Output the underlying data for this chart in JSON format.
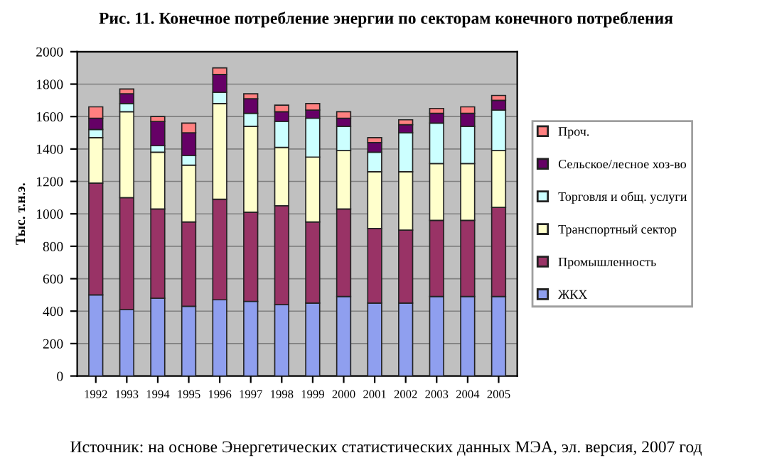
{
  "chart_data": {
    "type": "bar",
    "stacked": true,
    "title": "Рис. 11. Конечное потребление энергии по секторам конечного потребления",
    "ylabel": "Тыс. т.н.э.",
    "categories": [
      "1992",
      "1993",
      "1994",
      "1995",
      "1996",
      "1997",
      "1998",
      "1999",
      "2000",
      "2001",
      "2002",
      "2003",
      "2004",
      "2005"
    ],
    "series": [
      {
        "name": "ЖКХ",
        "color": "#8f9fef",
        "values": [
          500,
          410,
          480,
          430,
          470,
          460,
          440,
          450,
          490,
          450,
          450,
          490,
          490,
          490
        ]
      },
      {
        "name": "Промышленность",
        "color": "#993366",
        "values": [
          690,
          690,
          550,
          520,
          620,
          550,
          610,
          500,
          540,
          460,
          450,
          470,
          470,
          550
        ]
      },
      {
        "name": "Транспортный сектор",
        "color": "#ffffcc",
        "values": [
          280,
          530,
          350,
          350,
          590,
          530,
          360,
          400,
          360,
          350,
          360,
          350,
          350,
          350
        ]
      },
      {
        "name": "Торговля и общ. услуги",
        "color": "#ccffff",
        "values": [
          50,
          50,
          40,
          60,
          70,
          80,
          160,
          240,
          150,
          120,
          240,
          250,
          230,
          250
        ]
      },
      {
        "name": "Сельское/лесное хоз-во",
        "color": "#660066",
        "values": [
          70,
          60,
          150,
          140,
          110,
          90,
          60,
          50,
          50,
          60,
          50,
          60,
          80,
          60
        ]
      },
      {
        "name": "Проч.",
        "color": "#ff8080",
        "values": [
          70,
          30,
          30,
          60,
          40,
          30,
          40,
          40,
          40,
          30,
          30,
          30,
          40,
          30
        ]
      }
    ],
    "ylim": [
      0,
      2000
    ],
    "yticks": [
      0,
      200,
      400,
      600,
      800,
      1000,
      1200,
      1400,
      1600,
      1800,
      2000
    ],
    "grid": "y",
    "legend": "right",
    "annotations": [
      "Источник: на основе Энергетических статистических данных МЭА, эл. версия, 2007 год"
    ]
  }
}
